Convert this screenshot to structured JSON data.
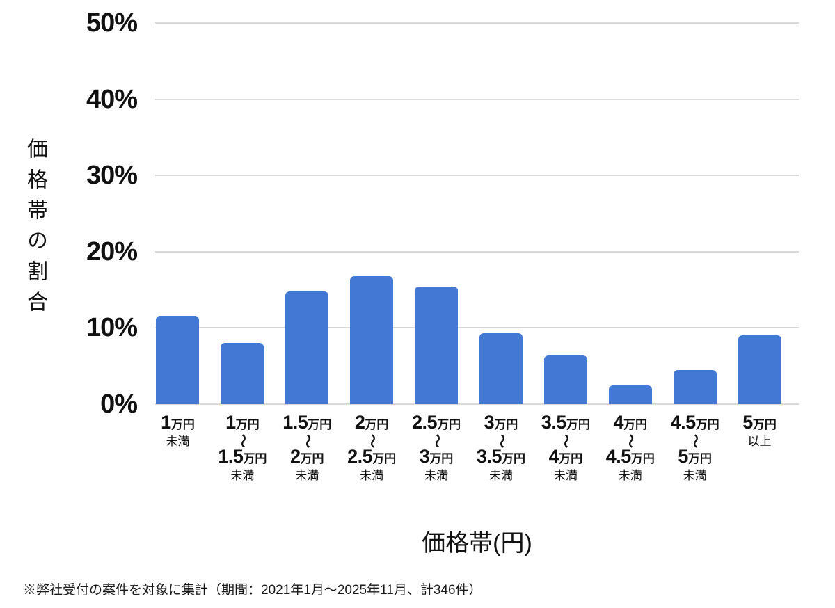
{
  "chart_data": {
    "type": "bar",
    "title": "",
    "xlabel": "価格帯(円)",
    "ylabel": "価格帯の割合",
    "ylim": [
      0,
      50
    ],
    "grid": true,
    "legend": "none",
    "bar_color": "#4379d4",
    "gridline_color": "#d9d9d9",
    "yticks": [
      {
        "v": 0,
        "label": "0%"
      },
      {
        "v": 10,
        "label": "10%"
      },
      {
        "v": 20,
        "label": "20%"
      },
      {
        "v": 30,
        "label": "30%"
      },
      {
        "v": 40,
        "label": "40%"
      },
      {
        "v": 50,
        "label": "50%"
      }
    ],
    "tilde": "〜",
    "categories": [
      {
        "from_num": "1",
        "from_unit": "万円",
        "note": "未満"
      },
      {
        "from_num": "1",
        "from_unit": "万円",
        "to_num": "1.5",
        "to_unit": "万円",
        "note": "未満"
      },
      {
        "from_num": "1.5",
        "from_unit": "万円",
        "to_num": "2",
        "to_unit": "万円",
        "note": "未満"
      },
      {
        "from_num": "2",
        "from_unit": "万円",
        "to_num": "2.5",
        "to_unit": "万円",
        "note": "未満"
      },
      {
        "from_num": "2.5",
        "from_unit": "万円",
        "to_num": "3",
        "to_unit": "万円",
        "note": "未満"
      },
      {
        "from_num": "3",
        "from_unit": "万円",
        "to_num": "3.5",
        "to_unit": "万円",
        "note": "未満"
      },
      {
        "from_num": "3.5",
        "from_unit": "万円",
        "to_num": "4",
        "to_unit": "万円",
        "note": "未満"
      },
      {
        "from_num": "4",
        "from_unit": "万円",
        "to_num": "4.5",
        "to_unit": "万円",
        "note": "未満"
      },
      {
        "from_num": "4.5",
        "from_unit": "万円",
        "to_num": "5",
        "to_unit": "万円",
        "note": "未満"
      },
      {
        "from_num": "5",
        "from_unit": "万円",
        "note": "以上"
      }
    ],
    "values": [
      11.6,
      8.0,
      14.8,
      16.8,
      15.4,
      9.3,
      6.4,
      2.5,
      4.5,
      9.0
    ]
  },
  "footnote": {
    "text": "※弊社受付の案件を対象に集計（期間：2021年1月～2025年11月、計346件）"
  }
}
